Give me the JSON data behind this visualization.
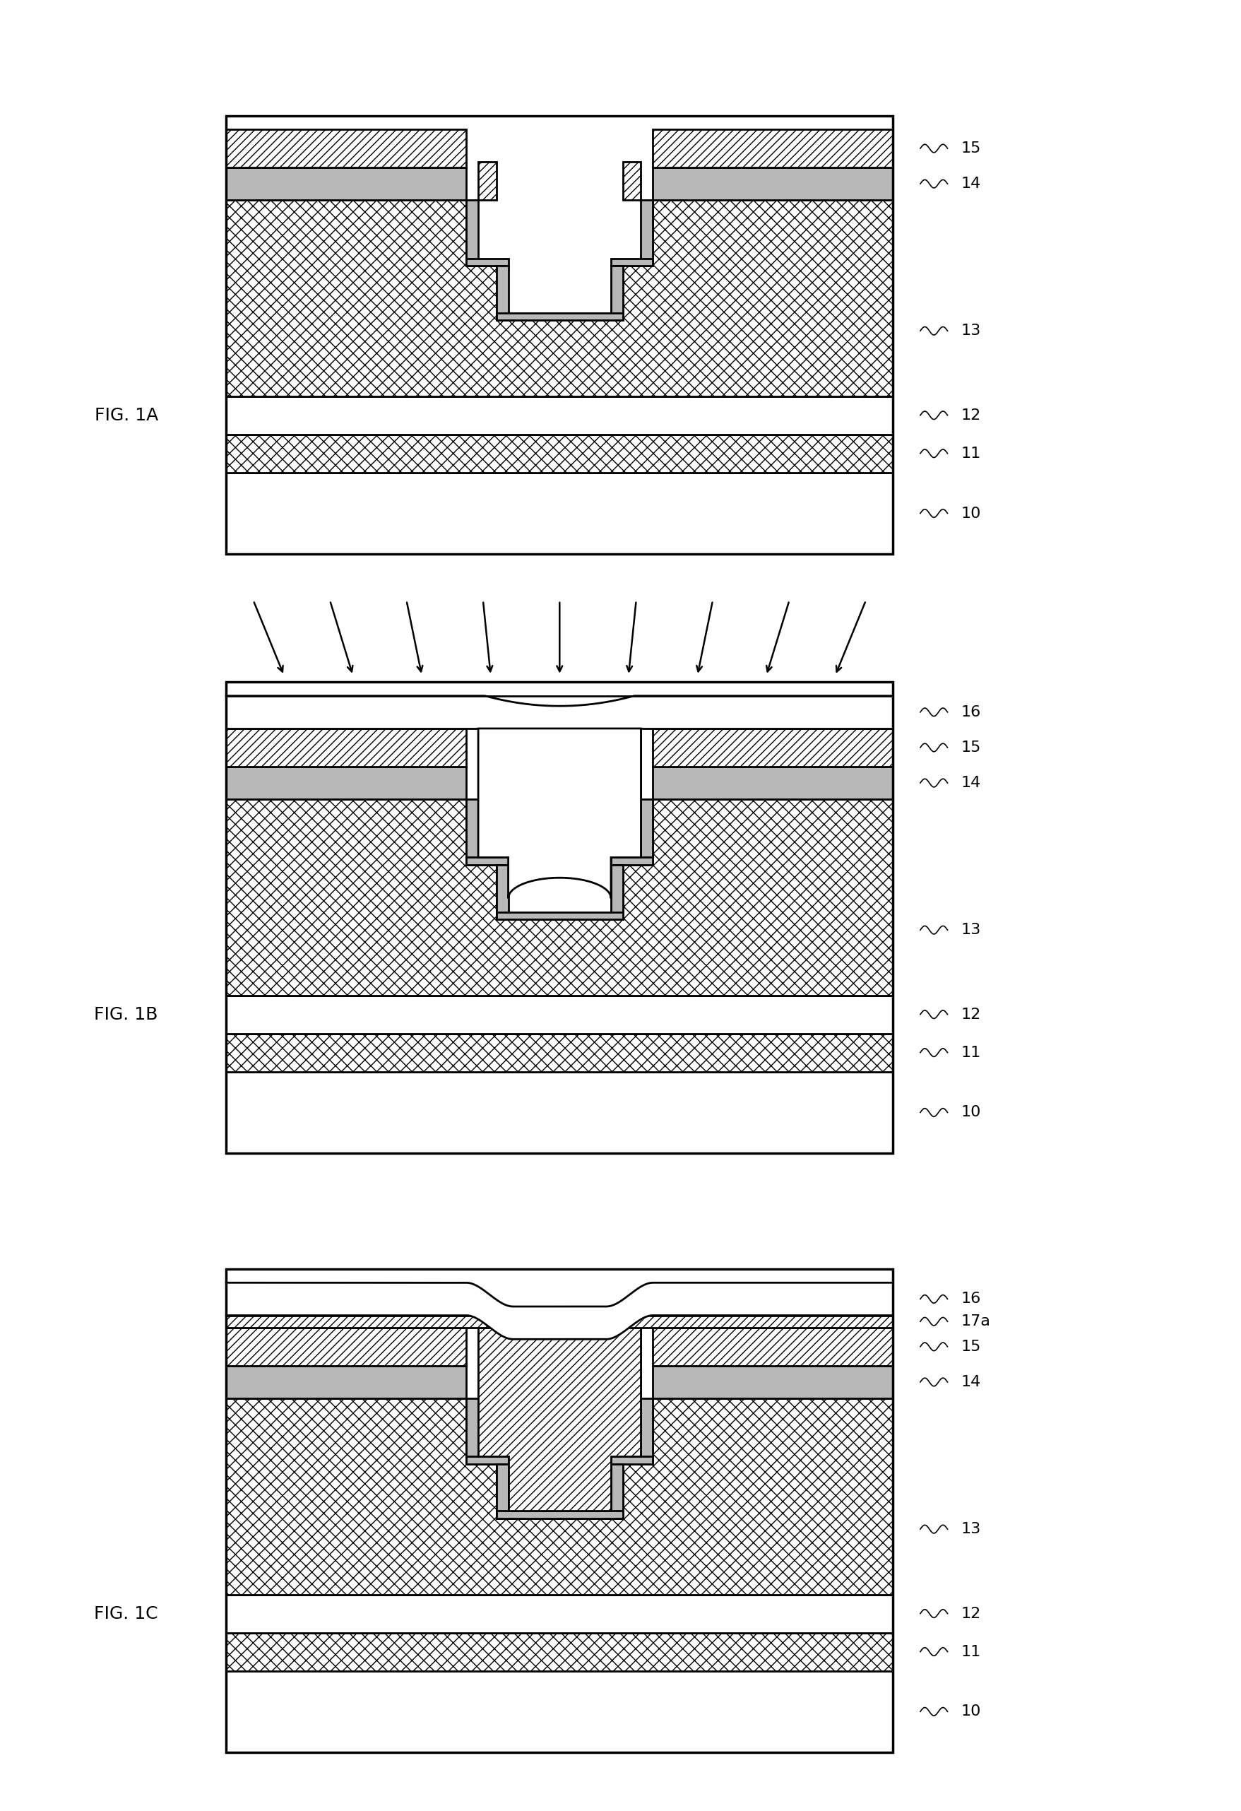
{
  "fig_width": 17.58,
  "fig_height": 25.63,
  "bg_color": "#ffffff",
  "lw": 2.0,
  "lw_thin": 1.2,
  "hatch_x": "xx",
  "hatch_slash": "///",
  "gray14": "#b8b8b8",
  "figs": [
    {
      "label": "FIG. 1A",
      "refs": [
        "15",
        "14",
        "13",
        "12",
        "11",
        "10"
      ],
      "has_arrows": false,
      "has_layer16": false,
      "has_layer17a": false
    },
    {
      "label": "FIG. 1B",
      "refs": [
        "16",
        "15",
        "14",
        "13",
        "12",
        "11",
        "10"
      ],
      "has_arrows": true,
      "has_layer16": true,
      "melting": true,
      "has_layer17a": false
    },
    {
      "label": "FIG. 1C",
      "refs": [
        "16",
        "17a",
        "15",
        "14",
        "13",
        "12",
        "11",
        "10"
      ],
      "has_arrows": false,
      "has_layer16": true,
      "melting": false,
      "has_layer17a": true
    }
  ]
}
